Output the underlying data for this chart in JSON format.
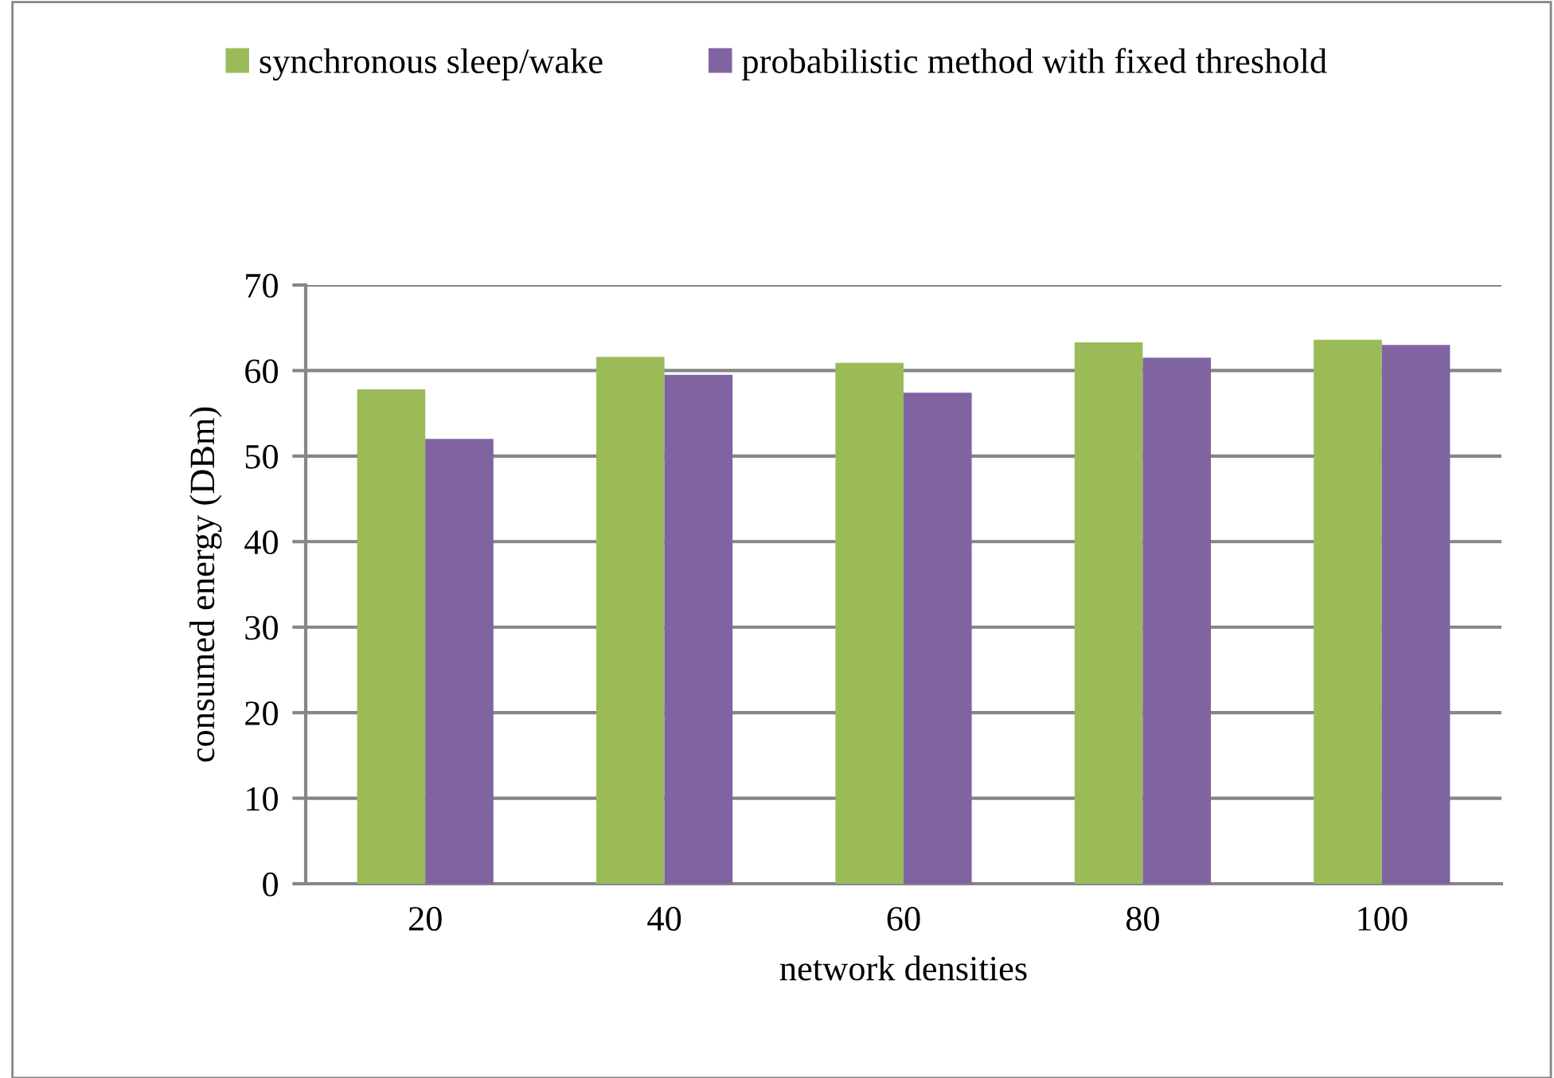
{
  "chart_data": {
    "type": "bar",
    "xlabel": "network densities",
    "ylabel": "consumed energy (DBm)",
    "categories": [
      "20",
      "40",
      "60",
      "80",
      "100"
    ],
    "series": [
      {
        "name": "synchronous sleep/wake",
        "color": "#9bbb59",
        "values": [
          57.8,
          61.6,
          60.9,
          63.3,
          63.6
        ]
      },
      {
        "name": "probabilistic method with fixed threshold",
        "color": "#8064a2",
        "values": [
          52.0,
          59.5,
          57.4,
          61.5,
          63.0
        ]
      }
    ],
    "ylim": [
      0,
      70
    ],
    "yticks": [
      0,
      10,
      20,
      30,
      40,
      50,
      60,
      70
    ],
    "grid": "y",
    "legend": "top"
  }
}
